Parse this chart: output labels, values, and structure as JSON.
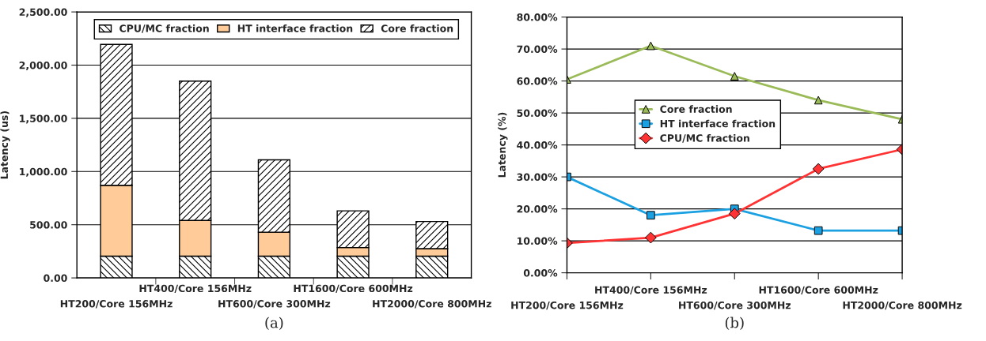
{
  "chart_data": [
    {
      "type": "bar",
      "stacked": true,
      "ylabel": "Latency (us)",
      "annotations": [
        "(a)"
      ],
      "categories": [
        "HT200/Core 156MHz",
        "HT400/Core 156MHz",
        "HT600/Core 300MHz",
        "HT1600/Core 600MHz",
        "HT2000/Core 800MHz"
      ],
      "series": [
        {
          "name": "CPU/MC fraction",
          "color": "#000000",
          "values": [
            205,
            205,
            205,
            205,
            205
          ]
        },
        {
          "name": "HT interface fraction",
          "color": "#ffcc99",
          "values": [
            665,
            335,
            225,
            80,
            70
          ]
        },
        {
          "name": "Core fraction",
          "color": "#000000",
          "values": [
            1325,
            1310,
            680,
            345,
            255
          ]
        }
      ],
      "ylim": [
        0,
        2500
      ],
      "yticks": [
        {
          "value": 0,
          "label": "0.00"
        },
        {
          "value": 500,
          "label": "500.00"
        },
        {
          "value": 1000,
          "label": "1,000.00"
        },
        {
          "value": 1500,
          "label": "1,500.00"
        },
        {
          "value": 2000,
          "label": "2,000.00"
        },
        {
          "value": 2500,
          "label": "2,500.00"
        }
      ],
      "grid": "y",
      "legend": "top right"
    },
    {
      "type": "line",
      "ylabel": "Latency (%)",
      "annotations": [
        "(b)"
      ],
      "categories": [
        "HT200/Core 156MHz",
        "HT400/Core 156MHz",
        "HT600/Core 300MHz",
        "HT1600/Core 600MHz",
        "HT2000/Core 800MHz"
      ],
      "series": [
        {
          "name": "Core fraction",
          "color": "#9bbb59",
          "marker": "triangle",
          "values": [
            60.5,
            71,
            61.5,
            54,
            48
          ]
        },
        {
          "name": "HT interface fraction",
          "color": "#1ba1e2",
          "marker": "square",
          "values": [
            30,
            18,
            20,
            13.2,
            13.2
          ]
        },
        {
          "name": "CPU/MC fraction",
          "color": "#ff3333",
          "marker": "diamond",
          "values": [
            9.3,
            11,
            18.5,
            32.5,
            38.6
          ]
        }
      ],
      "ylim": [
        0,
        80
      ],
      "yticks": [
        {
          "value": 0,
          "label": "0.00%"
        },
        {
          "value": 10,
          "label": "10.00%"
        },
        {
          "value": 20,
          "label": "20.00%"
        },
        {
          "value": 30,
          "label": "30.00%"
        },
        {
          "value": 40,
          "label": "40.00%"
        },
        {
          "value": 50,
          "label": "50.00%"
        },
        {
          "value": 60,
          "label": "60.00%"
        },
        {
          "value": 70,
          "label": "70.00%"
        },
        {
          "value": 80,
          "label": "80.00%"
        }
      ],
      "grid": "y",
      "legend": "center"
    }
  ]
}
